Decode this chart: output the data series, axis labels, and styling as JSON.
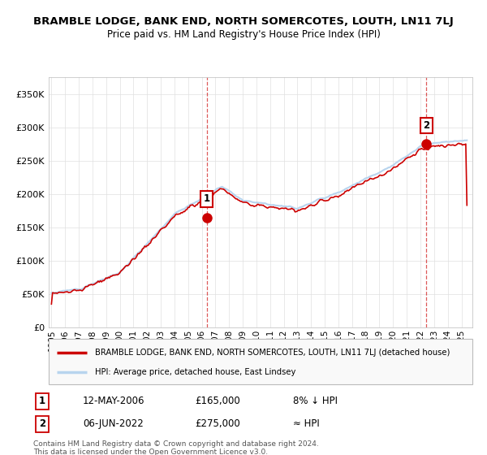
{
  "title": "BRAMBLE LODGE, BANK END, NORTH SOMERCOTES, LOUTH, LN11 7LJ",
  "subtitle": "Price paid vs. HM Land Registry's House Price Index (HPI)",
  "ylabel_ticks": [
    "£0",
    "£50K",
    "£100K",
    "£150K",
    "£200K",
    "£250K",
    "£300K",
    "£350K"
  ],
  "ytick_vals": [
    0,
    50000,
    100000,
    150000,
    200000,
    250000,
    300000,
    350000
  ],
  "ylim": [
    0,
    375000
  ],
  "xlim_start": 1994.8,
  "xlim_end": 2025.8,
  "hpi_color": "#b8d4ee",
  "price_color": "#cc0000",
  "sale1_x": 2006.36,
  "sale1_y": 165000,
  "sale2_x": 2022.43,
  "sale2_y": 275000,
  "vline1_x": 2006.36,
  "vline2_x": 2022.43,
  "legend_label1": "BRAMBLE LODGE, BANK END, NORTH SOMERCOTES, LOUTH, LN11 7LJ (detached house)",
  "legend_label2": "HPI: Average price, detached house, East Lindsey",
  "note1_date": "12-MAY-2006",
  "note1_price": "£165,000",
  "note1_hpi": "8% ↓ HPI",
  "note2_date": "06-JUN-2022",
  "note2_price": "£275,000",
  "note2_hpi": "≈ HPI",
  "copyright": "Contains HM Land Registry data © Crown copyright and database right 2024.\nThis data is licensed under the Open Government Licence v3.0.",
  "background_color": "#ffffff",
  "grid_color": "#e0e0e0"
}
